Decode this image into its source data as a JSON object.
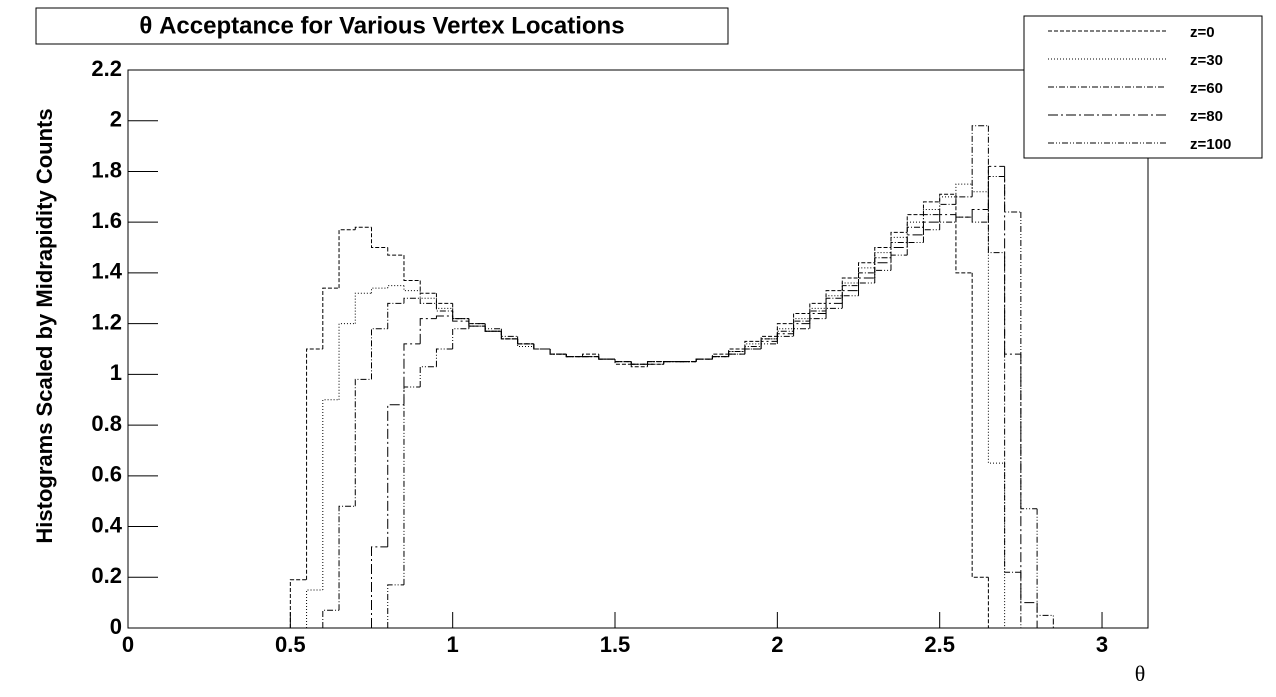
{
  "chart_data": {
    "type": "histogram",
    "title": "θ Acceptance for Various Vertex Locations",
    "x_label": "θ",
    "y_label": "Histograms Scaled by Midrapidity Counts",
    "bins": [
      0.45,
      0.5,
      0.55,
      0.6,
      0.65,
      0.7,
      0.75,
      0.8,
      0.85,
      0.9,
      0.95,
      1.0,
      1.05,
      1.1,
      1.15,
      1.2,
      1.25,
      1.3,
      1.35,
      1.4,
      1.45,
      1.5,
      1.55,
      1.6,
      1.65,
      1.7,
      1.75,
      1.8,
      1.85,
      1.9,
      1.95,
      2.0,
      2.05,
      2.1,
      2.15,
      2.2,
      2.25,
      2.3,
      2.35,
      2.4,
      2.45,
      2.5,
      2.55,
      2.6,
      2.65,
      2.7,
      2.75,
      2.8,
      2.85
    ],
    "series": [
      {
        "name": "z=0",
        "color": "#000000",
        "line_style": "dashed",
        "values": [
          0,
          0.19,
          1.1,
          1.34,
          1.57,
          1.58,
          1.5,
          1.47,
          1.37,
          1.32,
          1.28,
          1.22,
          1.2,
          1.17,
          1.14,
          1.12,
          1.1,
          1.08,
          1.07,
          1.08,
          1.06,
          1.04,
          1.03,
          1.04,
          1.05,
          1.05,
          1.06,
          1.08,
          1.1,
          1.13,
          1.15,
          1.2,
          1.24,
          1.28,
          1.33,
          1.38,
          1.44,
          1.5,
          1.56,
          1.63,
          1.68,
          1.71,
          1.4,
          0.2,
          0,
          0,
          0,
          0
        ]
      },
      {
        "name": "z=30",
        "color": "#000000",
        "line_style": "dotted",
        "values": [
          0,
          0,
          0.15,
          0.9,
          1.2,
          1.32,
          1.34,
          1.35,
          1.33,
          1.3,
          1.26,
          1.22,
          1.19,
          1.17,
          1.14,
          1.11,
          1.1,
          1.08,
          1.07,
          1.07,
          1.06,
          1.05,
          1.04,
          1.05,
          1.05,
          1.05,
          1.06,
          1.07,
          1.09,
          1.12,
          1.14,
          1.18,
          1.22,
          1.26,
          1.31,
          1.36,
          1.42,
          1.48,
          1.54,
          1.6,
          1.65,
          1.7,
          1.75,
          1.72,
          0.65,
          0,
          0,
          0
        ]
      },
      {
        "name": "z=60",
        "color": "#000000",
        "line_style": "dashdot",
        "values": [
          0,
          0,
          0,
          0.07,
          0.48,
          0.98,
          1.18,
          1.28,
          1.3,
          1.28,
          1.25,
          1.22,
          1.19,
          1.17,
          1.14,
          1.12,
          1.1,
          1.08,
          1.07,
          1.07,
          1.06,
          1.05,
          1.04,
          1.05,
          1.05,
          1.05,
          1.06,
          1.07,
          1.09,
          1.11,
          1.14,
          1.17,
          1.21,
          1.25,
          1.3,
          1.35,
          1.4,
          1.46,
          1.52,
          1.58,
          1.63,
          1.67,
          1.7,
          1.98,
          1.48,
          0.22,
          0,
          0
        ]
      },
      {
        "name": "z=80",
        "color": "#000000",
        "line_style": "longdashdot",
        "values": [
          0,
          0,
          0,
          0,
          0,
          0,
          0.32,
          0.88,
          1.12,
          1.22,
          1.23,
          1.21,
          1.19,
          1.17,
          1.14,
          1.12,
          1.1,
          1.08,
          1.07,
          1.07,
          1.06,
          1.05,
          1.04,
          1.05,
          1.05,
          1.05,
          1.06,
          1.07,
          1.08,
          1.1,
          1.13,
          1.16,
          1.2,
          1.24,
          1.28,
          1.33,
          1.38,
          1.44,
          1.5,
          1.55,
          1.6,
          1.63,
          1.62,
          1.65,
          1.82,
          1.08,
          0.1,
          0
        ]
      },
      {
        "name": "z=100",
        "color": "#000000",
        "line_style": "dashdotdot",
        "values": [
          0,
          0,
          0,
          0,
          0,
          0,
          0,
          0.17,
          0.95,
          1.03,
          1.1,
          1.18,
          1.2,
          1.18,
          1.15,
          1.12,
          1.1,
          1.08,
          1.07,
          1.07,
          1.06,
          1.05,
          1.04,
          1.04,
          1.05,
          1.05,
          1.06,
          1.07,
          1.08,
          1.1,
          1.12,
          1.15,
          1.18,
          1.22,
          1.26,
          1.31,
          1.36,
          1.41,
          1.47,
          1.52,
          1.57,
          1.6,
          1.62,
          1.6,
          1.78,
          1.64,
          0.47,
          0.05
        ]
      }
    ],
    "xlim": [
      0,
      3.1416
    ],
    "ylim": [
      0,
      2.2
    ],
    "xticks": [
      0,
      0.5,
      1,
      1.5,
      2,
      2.5,
      3
    ],
    "yticks": [
      0,
      0.2,
      0.4,
      0.6,
      0.8,
      1,
      1.2,
      1.4,
      1.6,
      1.8,
      2,
      2.2
    ],
    "grid": false,
    "legend_position": "top-right"
  }
}
